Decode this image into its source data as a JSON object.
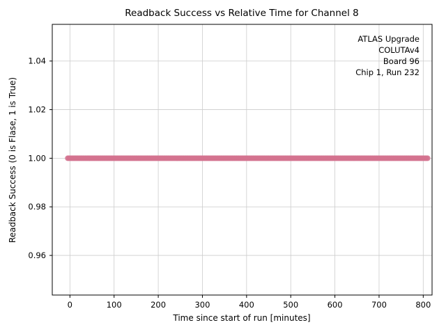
{
  "chart_data": {
    "type": "scatter",
    "title": "Readback Success vs Relative Time for Channel 8",
    "xlabel": "Time since start of run [minutes]",
    "ylabel": "Readback Success (0 is Flase, 1 is True)",
    "xlim": [
      -40,
      820
    ],
    "ylim": [
      0.9437,
      1.0551
    ],
    "xticks": [
      0,
      100,
      200,
      300,
      400,
      500,
      600,
      700,
      800
    ],
    "xtick_labels": [
      "0",
      "100",
      "200",
      "300",
      "400",
      "500",
      "600",
      "700",
      "800"
    ],
    "yticks": [
      0.96,
      0.98,
      1.0,
      1.02,
      1.04
    ],
    "ytick_labels": [
      "0.96",
      "0.98",
      "1.00",
      "1.02",
      "1.04"
    ],
    "grid": true,
    "grid_color": "#cccccc",
    "annotation": {
      "lines": [
        "ATLAS Upgrade",
        "COLUTAv4",
        "Board 96",
        "Chip 1, Run 232"
      ],
      "position": "top-right"
    },
    "series": [
      {
        "name": "readback-success",
        "marker": "circle",
        "marker_color": "#d4738f",
        "line_color": "#c24e6e",
        "y_value": 1.0,
        "x_start": -5,
        "x_end": 810,
        "x_step": 2.5,
        "note": "dense band of scatter points, all at y = 1.0 (readback always succeeded)"
      }
    ]
  }
}
